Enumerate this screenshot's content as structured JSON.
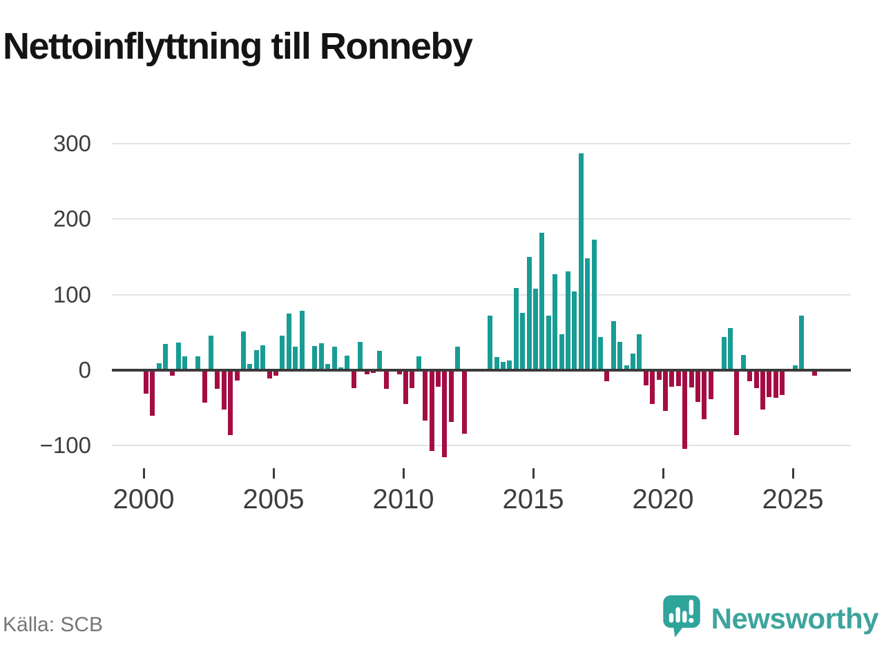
{
  "title": "Nettoinflyttning till Ronneby",
  "source": "Källa: SCB",
  "brand": {
    "name": "Newsworthy",
    "icon": "bar-chart-speech-bubble-icon"
  },
  "colors": {
    "positive": "#189c94",
    "negative": "#a40d43",
    "axis": "#3a3a3a",
    "grid": "#e2e2e2",
    "tick_label": "#3d3d3d",
    "source_text": "#767676",
    "brand_teal": "#3da49d",
    "background": "#ffffff"
  },
  "chart_data": {
    "type": "bar",
    "title": "Nettoinflyttning till Ronneby",
    "xlabel": "",
    "ylabel": "",
    "grid": true,
    "ylim": [
      -130,
      310
    ],
    "y_ticks": [
      300,
      200,
      100,
      0,
      -100
    ],
    "y_tick_labels": [
      "300",
      "200",
      "100",
      "0",
      "−100"
    ],
    "x_tick_labels": [
      "2000",
      "2005",
      "2010",
      "2015",
      "2020",
      "2025"
    ],
    "x_tick_every_n_bars": 20,
    "categories": [
      "2000Q1",
      "2000Q2",
      "2000Q3",
      "2000Q4",
      "2001Q1",
      "2001Q2",
      "2001Q3",
      "2001Q4",
      "2002Q1",
      "2002Q2",
      "2002Q3",
      "2002Q4",
      "2003Q1",
      "2003Q2",
      "2003Q3",
      "2003Q4",
      "2004Q1",
      "2004Q2",
      "2004Q3",
      "2004Q4",
      "2005Q1",
      "2005Q2",
      "2005Q3",
      "2005Q4",
      "2006Q1",
      "2006Q2",
      "2006Q3",
      "2006Q4",
      "2007Q1",
      "2007Q2",
      "2007Q3",
      "2007Q4",
      "2008Q1",
      "2008Q2",
      "2008Q3",
      "2008Q4",
      "2009Q1",
      "2009Q2",
      "2009Q3",
      "2009Q4",
      "2010Q1",
      "2010Q2",
      "2010Q3",
      "2010Q4",
      "2011Q1",
      "2011Q2",
      "2011Q3",
      "2011Q4",
      "2012Q1",
      "2012Q2",
      "2012Q3",
      "2012Q4",
      "2013Q1",
      "2013Q2",
      "2013Q3",
      "2013Q4",
      "2014Q1",
      "2014Q2",
      "2014Q3",
      "2014Q4",
      "2015Q1",
      "2015Q2",
      "2015Q3",
      "2015Q4",
      "2016Q1",
      "2016Q2",
      "2016Q3",
      "2016Q4",
      "2017Q1",
      "2017Q2",
      "2017Q3",
      "2017Q4",
      "2018Q1",
      "2018Q2",
      "2018Q3",
      "2018Q4",
      "2019Q1",
      "2019Q2",
      "2019Q3",
      "2019Q4",
      "2020Q1",
      "2020Q2",
      "2020Q3",
      "2020Q4",
      "2021Q1",
      "2021Q2",
      "2021Q3",
      "2021Q4",
      "2022Q1",
      "2022Q2",
      "2022Q3",
      "2022Q4",
      "2023Q1",
      "2023Q2",
      "2023Q3",
      "2023Q4",
      "2024Q1",
      "2024Q2",
      "2024Q3",
      "2024Q4",
      "2025Q1",
      "2025Q2",
      "2025Q3",
      "2025Q4"
    ],
    "values": [
      -31,
      -60,
      9,
      35,
      -7,
      37,
      18,
      0,
      18,
      -43,
      46,
      -25,
      -52,
      -86,
      -14,
      51,
      8,
      27,
      33,
      -11,
      -7,
      46,
      75,
      31,
      79,
      0,
      32,
      36,
      8,
      31,
      4,
      19,
      -24,
      38,
      -5,
      -4,
      26,
      -25,
      0,
      -5,
      -45,
      -24,
      18,
      -67,
      -107,
      -22,
      -115,
      -69,
      31,
      -84,
      0,
      0,
      0,
      72,
      17,
      11,
      13,
      109,
      76,
      150,
      108,
      182,
      72,
      127,
      48,
      131,
      104,
      287,
      148,
      173,
      44,
      -15,
      65,
      38,
      6,
      22,
      48,
      -20,
      -45,
      -13,
      -54,
      -22,
      -21,
      -104,
      -23,
      -42,
      -65,
      -38,
      0,
      44,
      56,
      -86,
      20,
      -15,
      -24,
      -52,
      -36,
      -37,
      -33,
      0,
      6,
      72,
      0,
      -7
    ]
  }
}
